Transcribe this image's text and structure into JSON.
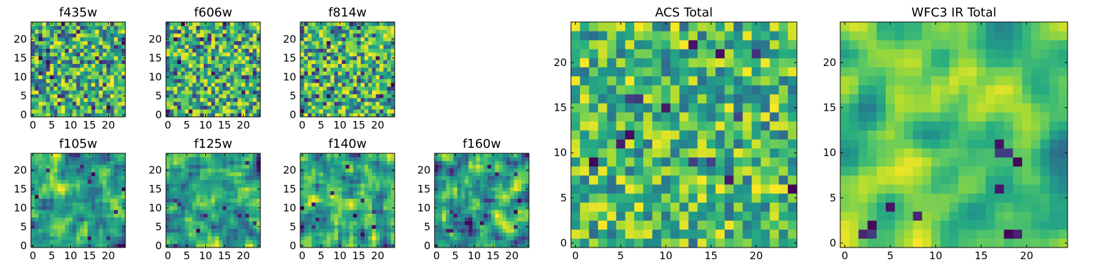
{
  "figure": {
    "background": "#ffffff",
    "colormap": "viridis",
    "colormap_stops": [
      "#440154",
      "#3b528b",
      "#21908d",
      "#5dc963",
      "#fde725"
    ]
  },
  "chart_data": [
    {
      "type": "heatmap",
      "title": "f435w",
      "grid_size": [
        25,
        25
      ],
      "xticks": [
        "0",
        "5",
        "10",
        "15",
        "20"
      ],
      "yticks": [
        "0",
        "5",
        "10",
        "15",
        "20"
      ],
      "xlim": [
        -0.5,
        24.5
      ],
      "ylim": [
        -0.5,
        24.5
      ],
      "texture": "fine noise",
      "seed": 11
    },
    {
      "type": "heatmap",
      "title": "f606w",
      "grid_size": [
        25,
        25
      ],
      "xticks": [
        "0",
        "5",
        "10",
        "15",
        "20"
      ],
      "yticks": [
        "0",
        "5",
        "10",
        "15",
        "20"
      ],
      "xlim": [
        -0.5,
        24.5
      ],
      "ylim": [
        -0.5,
        24.5
      ],
      "texture": "fine noise",
      "seed": 23
    },
    {
      "type": "heatmap",
      "title": "f814w",
      "grid_size": [
        25,
        25
      ],
      "xticks": [
        "0",
        "5",
        "10",
        "15",
        "20"
      ],
      "yticks": [
        "0",
        "5",
        "10",
        "15",
        "20"
      ],
      "xlim": [
        -0.5,
        24.5
      ],
      "ylim": [
        -0.5,
        24.5
      ],
      "texture": "fine noise",
      "seed": 37
    },
    {
      "type": "heatmap",
      "title": "f105w",
      "grid_size": [
        25,
        25
      ],
      "xticks": [
        "0",
        "5",
        "10",
        "15",
        "20"
      ],
      "yticks": [
        "0",
        "5",
        "10",
        "15",
        "20"
      ],
      "xlim": [
        -0.5,
        24.5
      ],
      "ylim": [
        -0.5,
        24.5
      ],
      "texture": "smooth blotches",
      "seed": 41
    },
    {
      "type": "heatmap",
      "title": "f125w",
      "grid_size": [
        25,
        25
      ],
      "xticks": [
        "0",
        "5",
        "10",
        "15",
        "20"
      ],
      "yticks": [
        "0",
        "5",
        "10",
        "15",
        "20"
      ],
      "xlim": [
        -0.5,
        24.5
      ],
      "ylim": [
        -0.5,
        24.5
      ],
      "texture": "smooth blotches",
      "seed": 53
    },
    {
      "type": "heatmap",
      "title": "f140w",
      "grid_size": [
        25,
        25
      ],
      "xticks": [
        "0",
        "5",
        "10",
        "15",
        "20"
      ],
      "yticks": [
        "0",
        "5",
        "10",
        "15",
        "20"
      ],
      "xlim": [
        -0.5,
        24.5
      ],
      "ylim": [
        -0.5,
        24.5
      ],
      "texture": "smooth blotches",
      "seed": 67
    },
    {
      "type": "heatmap",
      "title": "f160w",
      "grid_size": [
        25,
        25
      ],
      "xticks": [
        "0",
        "5",
        "10",
        "15",
        "20"
      ],
      "yticks": [
        "0",
        "5",
        "10",
        "15",
        "20"
      ],
      "xlim": [
        -0.5,
        24.5
      ],
      "ylim": [
        -0.5,
        24.5
      ],
      "texture": "smooth blotches",
      "seed": 79
    },
    {
      "type": "heatmap",
      "title": "ACS Total",
      "grid_size": [
        25,
        25
      ],
      "xticks": [
        "0",
        "5",
        "10",
        "15",
        "20"
      ],
      "yticks": [
        "0",
        "5",
        "10",
        "15",
        "20"
      ],
      "xlim": [
        -0.5,
        24.5
      ],
      "ylim": [
        -0.5,
        24.5
      ],
      "texture": "coarse noise",
      "seed": 97
    },
    {
      "type": "heatmap",
      "title": "WFC3 IR Total",
      "grid_size": [
        25,
        25
      ],
      "xticks": [
        "0",
        "5",
        "10",
        "15",
        "20"
      ],
      "yticks": [
        "0",
        "5",
        "10",
        "15",
        "20"
      ],
      "xlim": [
        -0.5,
        24.5
      ],
      "ylim": [
        -0.5,
        24.5
      ],
      "texture": "smooth with dark patches",
      "seed": 113
    }
  ]
}
